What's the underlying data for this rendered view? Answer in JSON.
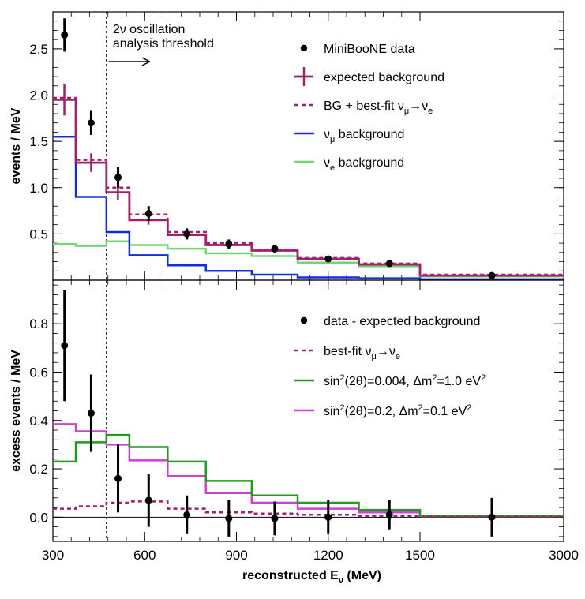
{
  "chart_data": [
    {
      "type": "histogram",
      "ylabel": "events / MeV",
      "ylim": [
        0,
        2.9
      ],
      "yticks": [
        "0.5",
        "1.0",
        "1.5",
        "2.0",
        "2.5"
      ],
      "ytick_values": [
        0.5,
        1.0,
        1.5,
        2.0,
        2.5
      ],
      "annotation": {
        "line1": "2ν oscillation",
        "line2": "analysis threshold",
        "x": 475
      },
      "bin_edges": [
        300,
        375,
        475,
        550,
        675,
        800,
        950,
        1100,
        1300,
        1500,
        3000
      ],
      "data": {
        "name": "MiniBooNE data",
        "x": [
          338,
          425,
          513,
          613,
          738,
          875,
          1025,
          1200,
          1400,
          2250
        ],
        "y": [
          2.65,
          1.7,
          1.11,
          0.72,
          0.5,
          0.39,
          0.34,
          0.23,
          0.18,
          0.05
        ],
        "err": [
          0.18,
          0.13,
          0.11,
          0.08,
          0.06,
          0.05,
          0.04,
          0.025,
          0.02,
          0.008
        ]
      },
      "expected_background": {
        "name": "expected background",
        "values": [
          1.95,
          1.27,
          0.95,
          0.65,
          0.49,
          0.38,
          0.32,
          0.23,
          0.17,
          0.05
        ],
        "err": [
          0.17,
          0.1,
          0.08,
          0.05,
          0.04,
          0.03,
          0.03,
          0.02,
          0.015,
          0.005
        ]
      },
      "series": [
        {
          "name": "BG + best-fit νμ→νe",
          "values": [
            1.97,
            1.3,
            1.0,
            0.71,
            0.52,
            0.4,
            0.33,
            0.24,
            0.18,
            0.06
          ],
          "color": "#a0206a",
          "dash": true
        },
        {
          "name": "νμ background",
          "values": [
            1.55,
            0.9,
            0.52,
            0.27,
            0.16,
            0.1,
            0.06,
            0.03,
            0.02,
            0.01
          ],
          "color": "#1030e0",
          "dash": false
        },
        {
          "name": "νe background",
          "values": [
            0.39,
            0.37,
            0.42,
            0.38,
            0.34,
            0.29,
            0.26,
            0.19,
            0.15,
            0.04
          ],
          "color": "#70d870",
          "dash": false
        }
      ],
      "legend": [
        {
          "label": "MiniBooNE data",
          "kind": "dot"
        },
        {
          "label": "expected background",
          "kind": "cross",
          "color": "#a0206a"
        },
        {
          "label": "BG + best-fit ",
          "sub1": "μ",
          "mid": "→",
          "sub2": "e",
          "kind": "dash",
          "color": "#a0206a"
        },
        {
          "label": "",
          "sub1": "μ",
          "tail": " background",
          "kind": "line",
          "color": "#1030e0"
        },
        {
          "label": "",
          "sub1": "e",
          "tail": " background",
          "kind": "line",
          "color": "#70d870"
        }
      ],
      "legend_placement": "top-right"
    },
    {
      "type": "histogram",
      "ylabel": "excess events / MeV",
      "xlabel": "reconstructed E",
      "xlabel_sub": "ν",
      "xlabel_unit": "(MeV)",
      "ylim": [
        -0.1,
        0.98
      ],
      "yticks": [
        "0.0",
        "0.2",
        "0.4",
        "0.6",
        "0.8"
      ],
      "ytick_values": [
        0.0,
        0.2,
        0.4,
        0.6,
        0.8
      ],
      "xticks": [
        "300",
        "600",
        "900",
        "1200",
        "1500",
        "3000"
      ],
      "xtick_values": [
        300,
        600,
        900,
        1200,
        1500,
        3000
      ],
      "bin_edges": [
        300,
        375,
        475,
        550,
        675,
        800,
        950,
        1100,
        1300,
        1500,
        3000
      ],
      "data": {
        "name": "data - expected background",
        "x": [
          338,
          425,
          513,
          613,
          738,
          875,
          1025,
          1200,
          1400,
          2250
        ],
        "y": [
          0.71,
          0.43,
          0.16,
          0.07,
          0.01,
          -0.005,
          -0.005,
          0.0,
          0.01,
          0.0
        ],
        "err": [
          0.23,
          0.16,
          0.14,
          0.11,
          0.08,
          0.075,
          0.07,
          0.07,
          0.06,
          0.08
        ]
      },
      "series": [
        {
          "name": "best-fit νμ→νe",
          "values": [
            0.035,
            0.045,
            0.06,
            0.065,
            0.035,
            0.02,
            0.015,
            0.01,
            0.005,
            0.002
          ],
          "color": "#a0206a",
          "dash": true
        },
        {
          "name": "sin²(2θ)=0.004, Δm²=1.0 eV²",
          "values": [
            0.23,
            0.31,
            0.34,
            0.29,
            0.23,
            0.15,
            0.09,
            0.06,
            0.03,
            0.005
          ],
          "color": "#1f9c1f",
          "dash": false
        },
        {
          "name": "sin²(2θ)=0.2, Δm²=0.1 eV²",
          "values": [
            0.385,
            0.355,
            0.3,
            0.235,
            0.17,
            0.1,
            0.06,
            0.035,
            0.02,
            0.005
          ],
          "color": "#d040d0",
          "dash": false
        }
      ],
      "legend": [
        {
          "label": "data - expected background",
          "kind": "dot"
        },
        {
          "label": "best-fit ",
          "sub1": "μ",
          "mid": "→",
          "sub2": "e",
          "kind": "dash",
          "color": "#a0206a"
        },
        {
          "label": "sin",
          "kind": "line",
          "color": "#1f9c1f",
          "a": "0.004",
          "b": "1.0"
        },
        {
          "label": "sin",
          "kind": "line",
          "color": "#d040d0",
          "a": "0.2",
          "b": "0.1"
        }
      ],
      "legend_placement": "top-right"
    }
  ]
}
